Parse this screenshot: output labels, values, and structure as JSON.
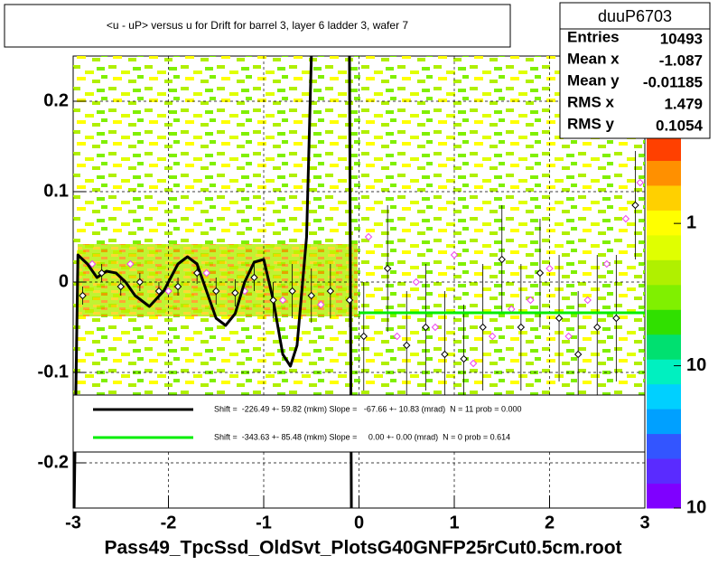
{
  "chart_data": {
    "type": "profile",
    "title": "<u - uP>       versus   u for Drift for barrel 3, layer 6 ladder 3, wafer 7",
    "xlabel": "Pass49_TpcSsd_OldSvt_PlotsG40GNFP25rCut0.5cm.root",
    "xlim": [
      -3,
      3
    ],
    "ylim": [
      -0.25,
      0.25
    ],
    "xticks": [
      -3,
      -2,
      -1,
      0,
      1,
      2,
      3
    ],
    "yticks": [
      -0.2,
      -0.1,
      0,
      0.1,
      0.2
    ],
    "grid": true,
    "zlog": true,
    "zlim": [
      0.01,
      15
    ],
    "zticks": [
      {
        "value": 0.01,
        "label": "10"
      },
      {
        "value": 0.1,
        "label": "10"
      },
      1,
      {
        "value": 10,
        "label": "10"
      }
    ],
    "palette": [
      "#7f00ff",
      "#5a2bff",
      "#3355ff",
      "#00a0ff",
      "#00d0ff",
      "#00f0c0",
      "#00e070",
      "#30e000",
      "#80f000",
      "#b0f000",
      "#e0ff00",
      "#ffff00",
      "#ffd000",
      "#ff9000",
      "#ff4000"
    ],
    "stats": {
      "name": "duuP6703",
      "rows": [
        {
          "label": "Entries",
          "value": "10493"
        },
        {
          "label": "Mean x",
          "value": "-1.087"
        },
        {
          "label": "Mean y",
          "value": "-0.01185"
        },
        {
          "label": "RMS x",
          "value": "1.479"
        },
        {
          "label": "RMS y",
          "value": "0.1054"
        }
      ]
    },
    "profile": {
      "color": "#000000",
      "x": [
        -2.9,
        -2.7,
        -2.5,
        -2.3,
        -2.1,
        -1.9,
        -1.7,
        -1.5,
        -1.3,
        -1.1,
        -0.9,
        -0.7,
        -0.5,
        -0.3,
        -0.1,
        0.05,
        0.3,
        0.5,
        0.7,
        0.9,
        1.1,
        1.3,
        1.5,
        1.7,
        1.9,
        2.1,
        2.3,
        2.5,
        2.7,
        2.9
      ],
      "values": [
        -0.015,
        0.01,
        -0.005,
        0,
        -0.01,
        -0.005,
        0.01,
        -0.01,
        -0.012,
        0.005,
        -0.02,
        -0.01,
        -0.015,
        -0.01,
        -0.02,
        -0.06,
        0.015,
        -0.07,
        -0.05,
        -0.08,
        -0.085,
        -0.05,
        0.025,
        -0.05,
        0.01,
        -0.04,
        -0.08,
        -0.05,
        -0.04,
        0.085
      ],
      "errors": [
        0.01,
        0.01,
        0.01,
        0.01,
        0.01,
        0.01,
        0.012,
        0.015,
        0.015,
        0.015,
        0.02,
        0.03,
        0.03,
        0.03,
        0.03,
        0.06,
        0.07,
        0.06,
        0.07,
        0.07,
        0.06,
        0.07,
        0.06,
        0.07,
        0.06,
        0.07,
        0.07,
        0.08,
        0.07,
        0.06
      ]
    },
    "profile2": {
      "color": "#ee44ee",
      "x": [
        -2.8,
        -2.4,
        -2.0,
        -1.6,
        -1.2,
        -0.8,
        -0.4,
        0.1,
        0.4,
        0.6,
        0.8,
        1.0,
        1.2,
        1.4,
        1.6,
        1.8,
        2.0,
        2.2,
        2.4,
        2.6,
        2.8,
        2.95
      ],
      "values": [
        0.02,
        0.02,
        -0.01,
        0.01,
        -0.01,
        -0.02,
        -0.025,
        0.05,
        -0.06,
        0,
        -0.05,
        0.03,
        -0.09,
        -0.06,
        -0.03,
        -0.02,
        0.015,
        -0.06,
        -0.02,
        0.02,
        0.07,
        0.11
      ]
    },
    "series": [
      {
        "name": "Shift =  -226.49 +- 59.82 (mkm) Slope =   -67.66 +- 10.83 (mrad)  N = 11 prob = 0.000",
        "color": "#000000",
        "x": [
          -2.99,
          -2.95,
          -2.85,
          -2.75,
          -2.65,
          -2.55,
          -2.45,
          -2.35,
          -2.2,
          -2.05,
          -1.9,
          -1.8,
          -1.7,
          -1.6,
          -1.5,
          -1.4,
          -1.3,
          -1.2,
          -1.1,
          -1.0,
          -0.9,
          -0.8,
          -0.72,
          -0.65,
          -0.55,
          -0.5,
          null,
          -0.1,
          -0.08
        ],
        "values": [
          -0.25,
          0.03,
          0.02,
          0.005,
          0.012,
          0.01,
          0,
          -0.015,
          -0.027,
          -0.01,
          0.02,
          0.028,
          0.02,
          -0.01,
          -0.04,
          -0.048,
          -0.035,
          0,
          0.022,
          0.025,
          -0.02,
          -0.08,
          -0.093,
          -0.07,
          0.05,
          0.25,
          null,
          0.25,
          -0.25
        ]
      },
      {
        "name": "Shift =  -343.63 +- 85.48 (mkm) Slope =     0.00 +- 0.00 (mrad)  N = 0 prob = 0.614",
        "color": "#00ee00",
        "x": [
          0,
          3
        ],
        "values": [
          -0.034,
          -0.034
        ]
      }
    ]
  }
}
